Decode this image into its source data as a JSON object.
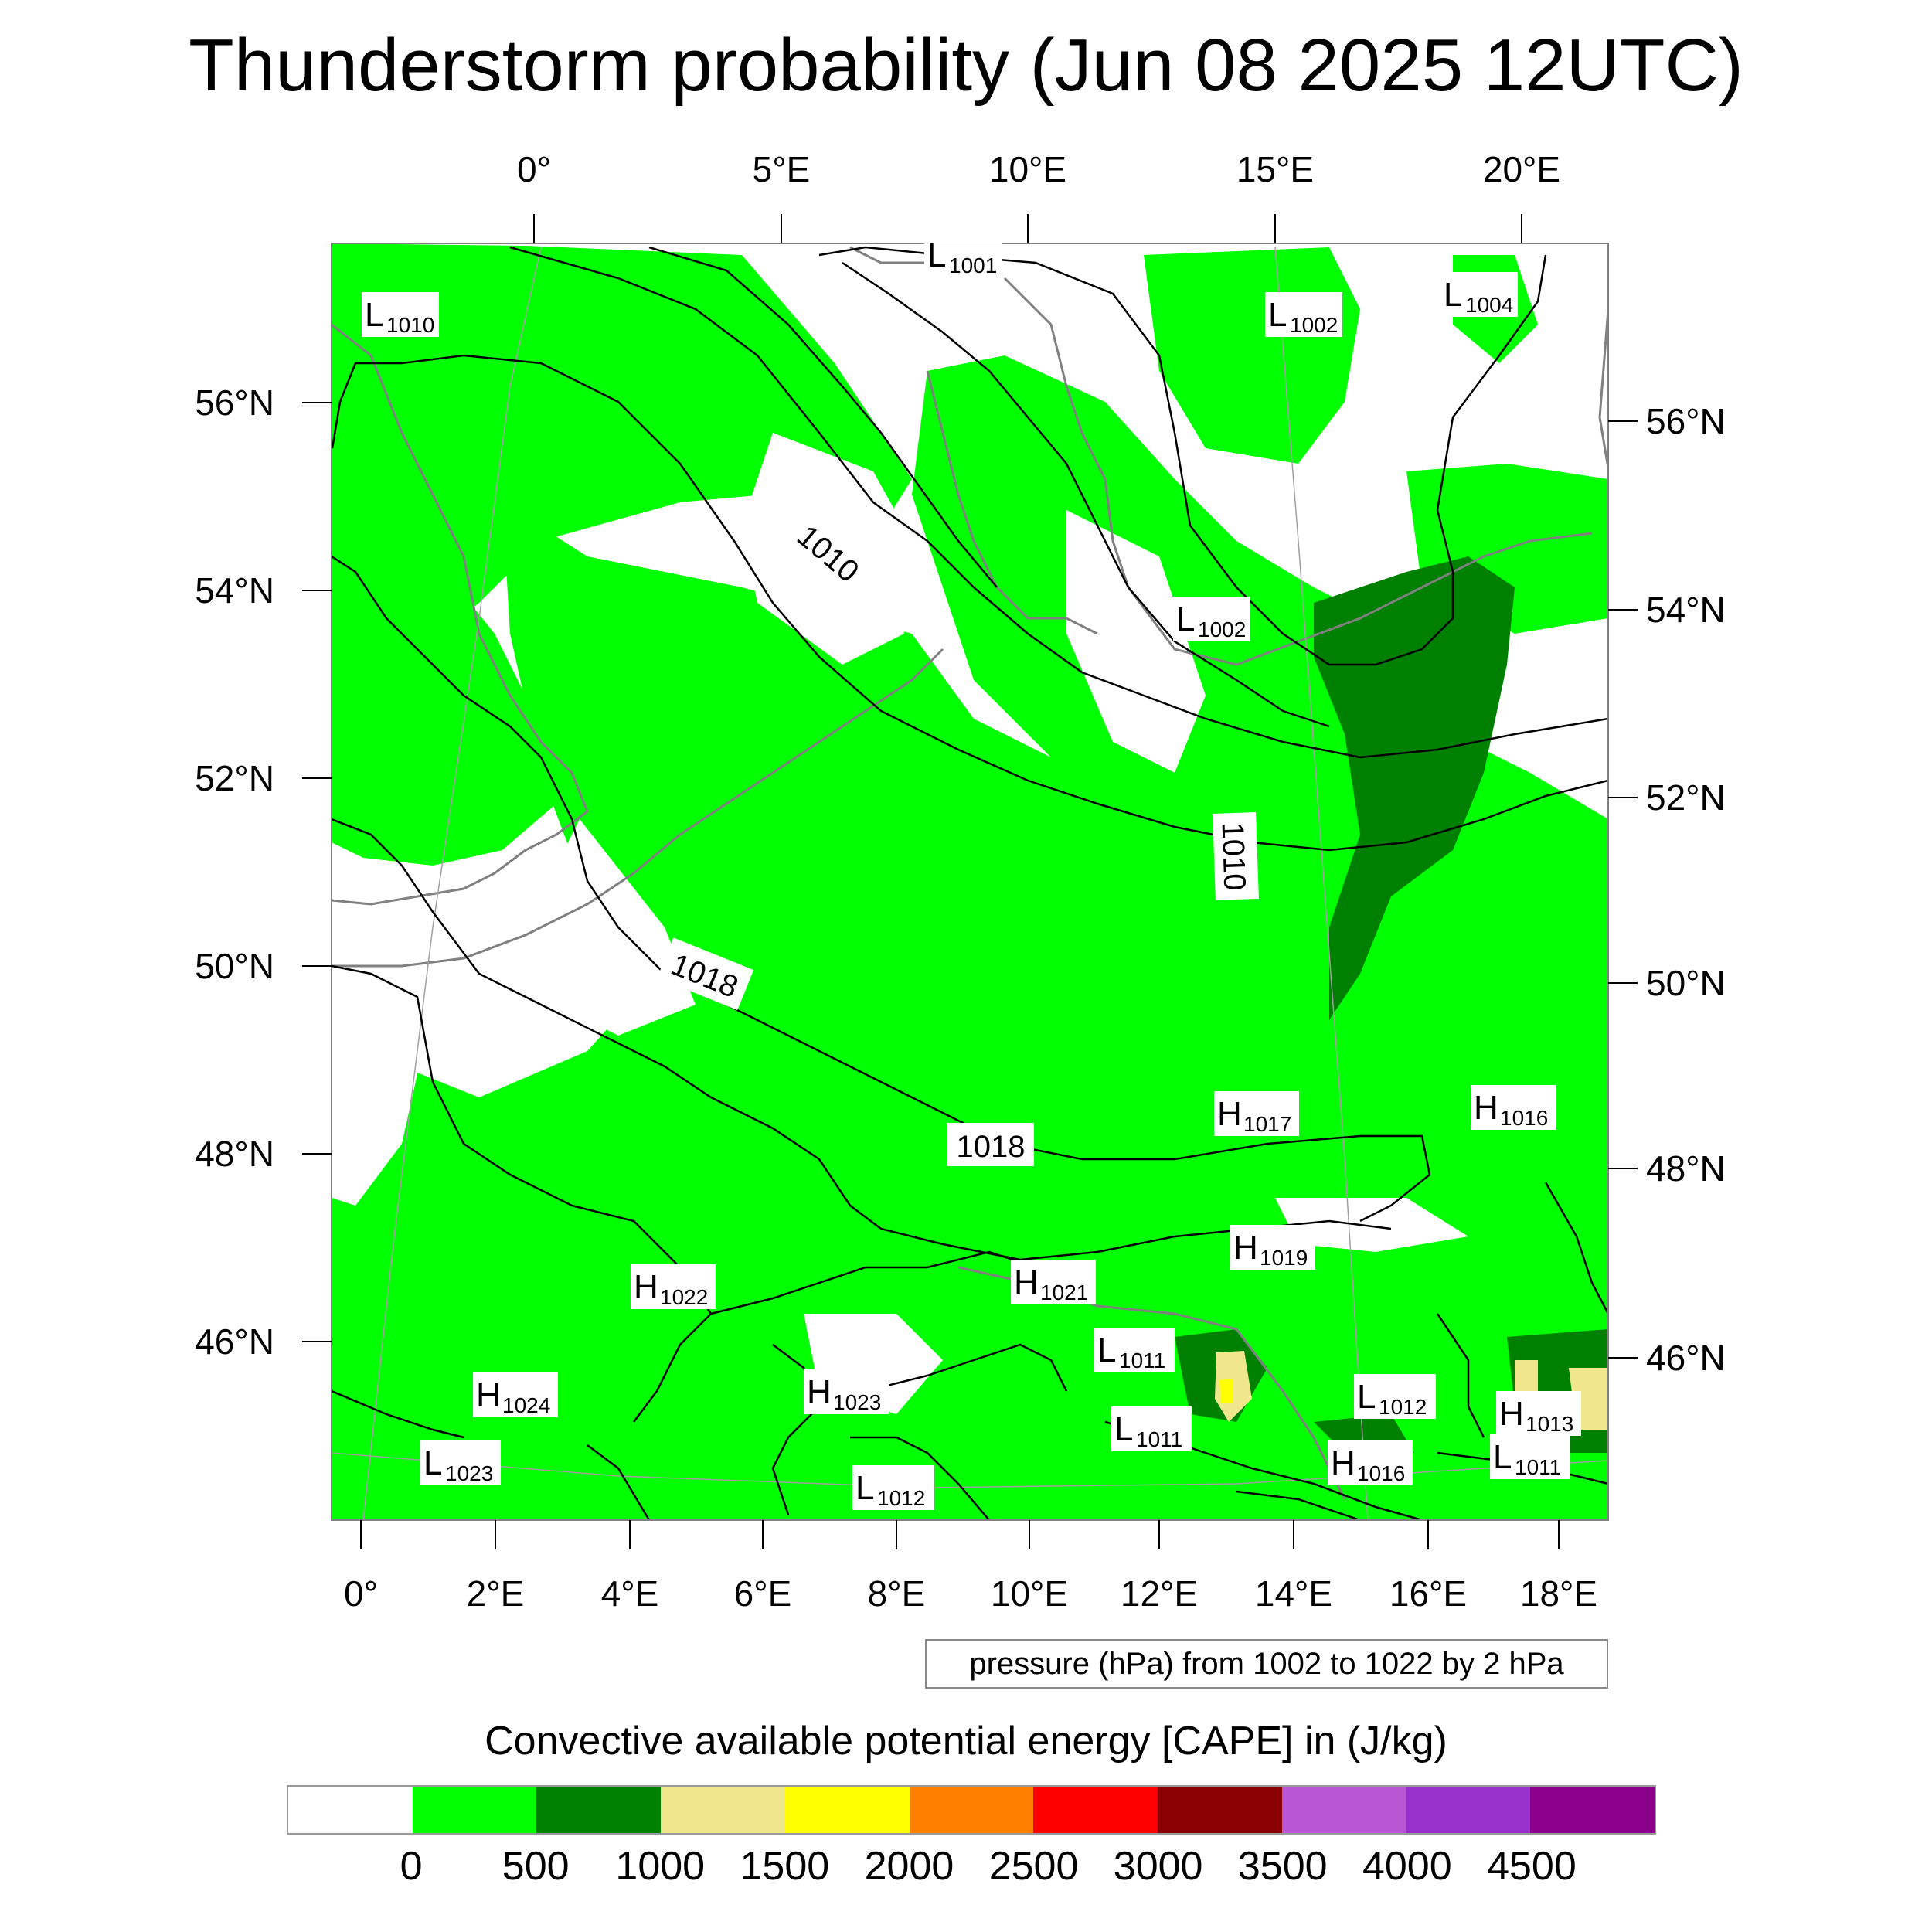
{
  "title": "Thunderstorm probability (Jun 08 2025 12UTC)",
  "top_lon_labels": [
    "0°",
    "5°E",
    "10°E",
    "15°E",
    "20°E"
  ],
  "bottom_lon_labels": [
    "0°",
    "2°E",
    "4°E",
    "6°E",
    "8°E",
    "10°E",
    "12°E",
    "14°E",
    "16°E",
    "18°E"
  ],
  "left_lat_labels": [
    "56°N",
    "54°N",
    "52°N",
    "50°N",
    "48°N",
    "46°N"
  ],
  "right_lat_labels": [
    "56°N",
    "54°N",
    "52°N",
    "50°N",
    "48°N",
    "46°N"
  ],
  "pressure_centers": [
    {
      "type": "L",
      "value": "1010"
    },
    {
      "type": "L",
      "value": "1001"
    },
    {
      "type": "L",
      "value": "1002"
    },
    {
      "type": "L",
      "value": "1004"
    },
    {
      "type": "L",
      "value": "1002"
    },
    {
      "type": "H",
      "value": "1017"
    },
    {
      "type": "H",
      "value": "1016"
    },
    {
      "type": "H",
      "value": "1019"
    },
    {
      "type": "H",
      "value": "1021"
    },
    {
      "type": "H",
      "value": "1022"
    },
    {
      "type": "L",
      "value": "1011"
    },
    {
      "type": "H",
      "value": "1024"
    },
    {
      "type": "H",
      "value": "1023"
    },
    {
      "type": "L",
      "value": "1011"
    },
    {
      "type": "L",
      "value": "1012"
    },
    {
      "type": "H",
      "value": "1013"
    },
    {
      "type": "H",
      "value": "1016"
    },
    {
      "type": "L",
      "value": "1011"
    },
    {
      "type": "L",
      "value": "1023"
    },
    {
      "type": "L",
      "value": "1012"
    }
  ],
  "isobar_labels": [
    "1010",
    "1010",
    "1018",
    "1018"
  ],
  "contour_note": "pressure (hPa) from 1002 to 1022 by 2 hPa",
  "colorbar": {
    "title": "Convective available potential energy [CAPE] in (J/kg)",
    "colors": [
      "#ffffff",
      "#00ff00",
      "#008000",
      "#f0e68c",
      "#ffff00",
      "#ff8000",
      "#ff0000",
      "#8b0000",
      "#b956d6",
      "#9932cc",
      "#8b008b"
    ],
    "tick_labels": [
      "0",
      "500",
      "1000",
      "1500",
      "2000",
      "2500",
      "3000",
      "3500",
      "4000",
      "4500"
    ]
  }
}
